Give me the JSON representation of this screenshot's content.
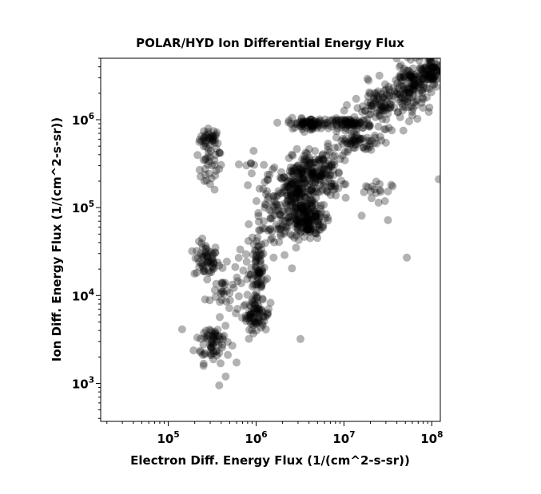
{
  "chart_data": {
    "type": "scatter",
    "title": "POLAR/HYD  Ion Differential Energy Flux",
    "xlabel": "Electron Diff. Energy Flux (1/(cm^2-s-sr))",
    "ylabel": "Ion Diff. Energy Flux (1/(cm^2-s-sr))",
    "xscale": "log",
    "yscale": "log",
    "xlim": [
      17000,
      125000000
    ],
    "ylim": [
      370,
      5000000
    ],
    "xticks": [
      {
        "base": "10",
        "exp": "5",
        "value": 100000
      },
      {
        "base": "10",
        "exp": "6",
        "value": 1000000
      },
      {
        "base": "10",
        "exp": "7",
        "value": 10000000
      },
      {
        "base": "10",
        "exp": "8",
        "value": 100000000
      }
    ],
    "yticks": [
      {
        "base": "10",
        "exp": "3",
        "value": 1000
      },
      {
        "base": "10",
        "exp": "4",
        "value": 10000
      },
      {
        "base": "10",
        "exp": "5",
        "value": 100000
      },
      {
        "base": "10",
        "exp": "6",
        "value": 1000000
      }
    ],
    "grid": false,
    "marker_color": "#000000",
    "marker_alpha": 0.3,
    "clusters": [
      {
        "x": 300000,
        "y": 600000,
        "sx": 0.06,
        "sy": 0.06,
        "n": 40
      },
      {
        "x": 300000,
        "y": 280000,
        "sx": 0.07,
        "sy": 0.12,
        "n": 30
      },
      {
        "x": 270000,
        "y": 25000,
        "sx": 0.07,
        "sy": 0.1,
        "n": 60
      },
      {
        "x": 320000,
        "y": 3000,
        "sx": 0.1,
        "sy": 0.12,
        "n": 70
      },
      {
        "x": 420000,
        "y": 11000,
        "sx": 0.1,
        "sy": 0.12,
        "n": 30
      },
      {
        "x": 1000000,
        "y": 6000,
        "sx": 0.08,
        "sy": 0.08,
        "n": 70
      },
      {
        "x": 1050000,
        "y": 18000,
        "sx": 0.04,
        "sy": 0.25,
        "n": 80
      },
      {
        "x": 1500000,
        "y": 70000,
        "sx": 0.1,
        "sy": 0.25,
        "n": 60
      },
      {
        "x": 3000000,
        "y": 130000,
        "sx": 0.12,
        "sy": 0.2,
        "n": 220
      },
      {
        "x": 3800000,
        "y": 70000,
        "sx": 0.1,
        "sy": 0.1,
        "n": 120
      },
      {
        "x": 5000000,
        "y": 250000,
        "sx": 0.14,
        "sy": 0.14,
        "n": 160
      },
      {
        "x": 4000000,
        "y": 900000,
        "sx": 0.12,
        "sy": 0.03,
        "n": 80
      },
      {
        "x": 12000000,
        "y": 900000,
        "sx": 0.12,
        "sy": 0.03,
        "n": 80
      },
      {
        "x": 15000000,
        "y": 550000,
        "sx": 0.15,
        "sy": 0.05,
        "n": 60
      },
      {
        "x": 30000000,
        "y": 1500000,
        "sx": 0.18,
        "sy": 0.12,
        "n": 120
      },
      {
        "x": 60000000,
        "y": 2500000,
        "sx": 0.12,
        "sy": 0.12,
        "n": 120
      },
      {
        "x": 100000000,
        "y": 3800000,
        "sx": 0.08,
        "sy": 0.08,
        "n": 80
      },
      {
        "x": 20000000,
        "y": 130000,
        "sx": 0.12,
        "sy": 0.12,
        "n": 20
      },
      {
        "x": 800000,
        "y": 300000,
        "sx": 0.1,
        "sy": 0.15,
        "n": 10
      },
      {
        "x": 700000,
        "y": 25000,
        "sx": 0.1,
        "sy": 0.2,
        "n": 15
      }
    ],
    "outliers": [
      {
        "x": 120000000,
        "y": 210000
      },
      {
        "x": 52000000,
        "y": 27000
      },
      {
        "x": 380000,
        "y": 950
      },
      {
        "x": 450000,
        "y": 1200
      },
      {
        "x": 3200000,
        "y": 3200
      }
    ]
  }
}
